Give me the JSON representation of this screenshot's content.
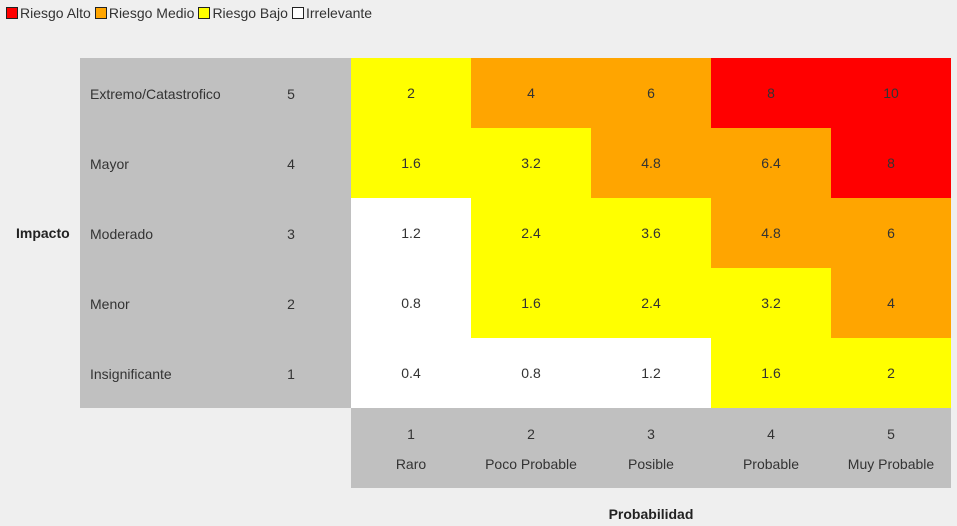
{
  "legend": [
    {
      "label": "Riesgo Alto",
      "color": "#ff0000"
    },
    {
      "label": "Riesgo Medio",
      "color": "#ffa500"
    },
    {
      "label": "Riesgo Bajo",
      "color": "#ffff00"
    },
    {
      "label": "Irrelevante",
      "color": "#ffffff"
    }
  ],
  "chart_data": {
    "type": "heatmap",
    "ylabel": "Impacto",
    "xlabel": "Probabilidad",
    "y_categories": [
      {
        "name": "Extremo/Catastrofico",
        "value": "5"
      },
      {
        "name": "Mayor",
        "value": "4"
      },
      {
        "name": "Moderado",
        "value": "3"
      },
      {
        "name": "Menor",
        "value": "2"
      },
      {
        "name": "Insignificante",
        "value": "1"
      }
    ],
    "x_categories": [
      {
        "name": "Raro",
        "value": "1"
      },
      {
        "name": "Poco Probable",
        "value": "2"
      },
      {
        "name": "Posible",
        "value": "3"
      },
      {
        "name": "Probable",
        "value": "4"
      },
      {
        "name": "Muy Probable",
        "value": "5"
      }
    ],
    "cells": [
      [
        {
          "v": "2",
          "c": "#ffff00"
        },
        {
          "v": "4",
          "c": "#ffa500"
        },
        {
          "v": "6",
          "c": "#ffa500"
        },
        {
          "v": "8",
          "c": "#ff0000"
        },
        {
          "v": "10",
          "c": "#ff0000"
        }
      ],
      [
        {
          "v": "1.6",
          "c": "#ffff00"
        },
        {
          "v": "3.2",
          "c": "#ffff00"
        },
        {
          "v": "4.8",
          "c": "#ffa500"
        },
        {
          "v": "6.4",
          "c": "#ffa500"
        },
        {
          "v": "8",
          "c": "#ff0000"
        }
      ],
      [
        {
          "v": "1.2",
          "c": "#ffffff"
        },
        {
          "v": "2.4",
          "c": "#ffff00"
        },
        {
          "v": "3.6",
          "c": "#ffff00"
        },
        {
          "v": "4.8",
          "c": "#ffa500"
        },
        {
          "v": "6",
          "c": "#ffa500"
        }
      ],
      [
        {
          "v": "0.8",
          "c": "#ffffff"
        },
        {
          "v": "1.6",
          "c": "#ffff00"
        },
        {
          "v": "2.4",
          "c": "#ffff00"
        },
        {
          "v": "3.2",
          "c": "#ffff00"
        },
        {
          "v": "4",
          "c": "#ffa500"
        }
      ],
      [
        {
          "v": "0.4",
          "c": "#ffffff"
        },
        {
          "v": "0.8",
          "c": "#ffffff"
        },
        {
          "v": "1.2",
          "c": "#ffffff"
        },
        {
          "v": "1.6",
          "c": "#ffff00"
        },
        {
          "v": "2",
          "c": "#ffff00"
        }
      ]
    ]
  }
}
